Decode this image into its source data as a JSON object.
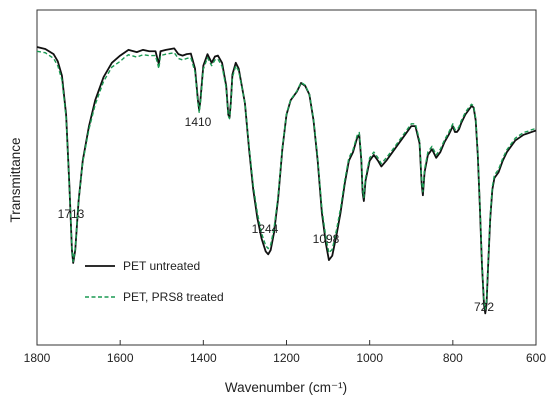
{
  "chart_data": {
    "type": "line",
    "title": "",
    "xlabel": "Wavenumber (cm⁻¹)",
    "ylabel": "Transmittance",
    "xlim": [
      1800,
      600
    ],
    "x_reversed": true,
    "x_ticks": [
      1800,
      1600,
      1400,
      1200,
      1000,
      800,
      600
    ],
    "y_ticks_shown": false,
    "grid": false,
    "legend_position": "bottom-left",
    "series": [
      {
        "name": "PET untreated",
        "color": "#111111",
        "dash": "solid",
        "points": [
          [
            1800,
            0.955
          ],
          [
            1780,
            0.948
          ],
          [
            1760,
            0.93
          ],
          [
            1750,
            0.905
          ],
          [
            1740,
            0.855
          ],
          [
            1730,
            0.72
          ],
          [
            1722,
            0.47
          ],
          [
            1716,
            0.25
          ],
          [
            1713,
            0.205
          ],
          [
            1708,
            0.25
          ],
          [
            1700,
            0.42
          ],
          [
            1690,
            0.56
          ],
          [
            1675,
            0.68
          ],
          [
            1660,
            0.77
          ],
          [
            1640,
            0.85
          ],
          [
            1620,
            0.9
          ],
          [
            1600,
            0.925
          ],
          [
            1590,
            0.935
          ],
          [
            1580,
            0.945
          ],
          [
            1560,
            0.937
          ],
          [
            1545,
            0.945
          ],
          [
            1530,
            0.94
          ],
          [
            1515,
            0.94
          ],
          [
            1507,
            0.895
          ],
          [
            1503,
            0.94
          ],
          [
            1490,
            0.945
          ],
          [
            1470,
            0.95
          ],
          [
            1460,
            0.93
          ],
          [
            1450,
            0.925
          ],
          [
            1440,
            0.93
          ],
          [
            1430,
            0.932
          ],
          [
            1420,
            0.88
          ],
          [
            1413,
            0.77
          ],
          [
            1410,
            0.735
          ],
          [
            1407,
            0.77
          ],
          [
            1400,
            0.89
          ],
          [
            1390,
            0.93
          ],
          [
            1380,
            0.9
          ],
          [
            1372,
            0.922
          ],
          [
            1365,
            0.925
          ],
          [
            1355,
            0.9
          ],
          [
            1345,
            0.82
          ],
          [
            1340,
            0.72
          ],
          [
            1337,
            0.71
          ],
          [
            1334,
            0.76
          ],
          [
            1330,
            0.86
          ],
          [
            1322,
            0.9
          ],
          [
            1315,
            0.88
          ],
          [
            1300,
            0.76
          ],
          [
            1290,
            0.6
          ],
          [
            1280,
            0.46
          ],
          [
            1270,
            0.36
          ],
          [
            1260,
            0.29
          ],
          [
            1250,
            0.245
          ],
          [
            1244,
            0.235
          ],
          [
            1238,
            0.25
          ],
          [
            1230,
            0.31
          ],
          [
            1220,
            0.43
          ],
          [
            1210,
            0.6
          ],
          [
            1200,
            0.72
          ],
          [
            1190,
            0.77
          ],
          [
            1180,
            0.79
          ],
          [
            1175,
            0.8
          ],
          [
            1165,
            0.83
          ],
          [
            1155,
            0.82
          ],
          [
            1145,
            0.79
          ],
          [
            1135,
            0.7
          ],
          [
            1125,
            0.56
          ],
          [
            1115,
            0.38
          ],
          [
            1105,
            0.27
          ],
          [
            1098,
            0.215
          ],
          [
            1090,
            0.23
          ],
          [
            1080,
            0.3
          ],
          [
            1070,
            0.38
          ],
          [
            1060,
            0.48
          ],
          [
            1050,
            0.56
          ],
          [
            1040,
            0.59
          ],
          [
            1030,
            0.64
          ],
          [
            1025,
            0.65
          ],
          [
            1020,
            0.56
          ],
          [
            1017,
            0.45
          ],
          [
            1014,
            0.42
          ],
          [
            1010,
            0.49
          ],
          [
            1000,
            0.56
          ],
          [
            990,
            0.58
          ],
          [
            980,
            0.56
          ],
          [
            972,
            0.54
          ],
          [
            960,
            0.56
          ],
          [
            945,
            0.59
          ],
          [
            930,
            0.62
          ],
          [
            915,
            0.65
          ],
          [
            900,
            0.68
          ],
          [
            890,
            0.68
          ],
          [
            880,
            0.62
          ],
          [
            875,
            0.48
          ],
          [
            872,
            0.44
          ],
          [
            868,
            0.52
          ],
          [
            860,
            0.58
          ],
          [
            850,
            0.6
          ],
          [
            840,
            0.57
          ],
          [
            830,
            0.59
          ],
          [
            820,
            0.625
          ],
          [
            810,
            0.65
          ],
          [
            800,
            0.68
          ],
          [
            795,
            0.66
          ],
          [
            790,
            0.66
          ],
          [
            785,
            0.67
          ],
          [
            780,
            0.69
          ],
          [
            770,
            0.72
          ],
          [
            760,
            0.74
          ],
          [
            755,
            0.75
          ],
          [
            750,
            0.745
          ],
          [
            745,
            0.7
          ],
          [
            740,
            0.58
          ],
          [
            735,
            0.4
          ],
          [
            730,
            0.2
          ],
          [
            725,
            0.06
          ],
          [
            722,
            0.03
          ],
          [
            719,
            0.06
          ],
          [
            715,
            0.2
          ],
          [
            710,
            0.36
          ],
          [
            705,
            0.46
          ],
          [
            700,
            0.5
          ],
          [
            690,
            0.52
          ],
          [
            680,
            0.56
          ],
          [
            670,
            0.59
          ],
          [
            660,
            0.61
          ],
          [
            650,
            0.63
          ],
          [
            640,
            0.64
          ],
          [
            630,
            0.65
          ],
          [
            620,
            0.655
          ],
          [
            610,
            0.66
          ],
          [
            600,
            0.665
          ]
        ]
      },
      {
        "name": "PET, PRS8 treated",
        "color": "#1a9a52",
        "dash": "dashed",
        "points": [
          [
            1800,
            0.94
          ],
          [
            1780,
            0.935
          ],
          [
            1760,
            0.915
          ],
          [
            1750,
            0.89
          ],
          [
            1740,
            0.84
          ],
          [
            1730,
            0.71
          ],
          [
            1722,
            0.465
          ],
          [
            1716,
            0.255
          ],
          [
            1713,
            0.21
          ],
          [
            1708,
            0.255
          ],
          [
            1700,
            0.42
          ],
          [
            1690,
            0.555
          ],
          [
            1675,
            0.67
          ],
          [
            1660,
            0.755
          ],
          [
            1640,
            0.835
          ],
          [
            1620,
            0.885
          ],
          [
            1600,
            0.905
          ],
          [
            1590,
            0.918
          ],
          [
            1580,
            0.928
          ],
          [
            1560,
            0.92
          ],
          [
            1545,
            0.928
          ],
          [
            1530,
            0.925
          ],
          [
            1515,
            0.925
          ],
          [
            1507,
            0.88
          ],
          [
            1503,
            0.925
          ],
          [
            1490,
            0.93
          ],
          [
            1470,
            0.935
          ],
          [
            1460,
            0.915
          ],
          [
            1450,
            0.91
          ],
          [
            1440,
            0.915
          ],
          [
            1430,
            0.918
          ],
          [
            1420,
            0.868
          ],
          [
            1413,
            0.762
          ],
          [
            1410,
            0.728
          ],
          [
            1407,
            0.762
          ],
          [
            1400,
            0.878
          ],
          [
            1390,
            0.918
          ],
          [
            1380,
            0.89
          ],
          [
            1372,
            0.91
          ],
          [
            1365,
            0.913
          ],
          [
            1355,
            0.888
          ],
          [
            1345,
            0.812
          ],
          [
            1340,
            0.715
          ],
          [
            1337,
            0.706
          ],
          [
            1334,
            0.752
          ],
          [
            1330,
            0.85
          ],
          [
            1322,
            0.89
          ],
          [
            1315,
            0.872
          ],
          [
            1300,
            0.76
          ],
          [
            1290,
            0.61
          ],
          [
            1280,
            0.475
          ],
          [
            1270,
            0.378
          ],
          [
            1260,
            0.308
          ],
          [
            1250,
            0.265
          ],
          [
            1244,
            0.255
          ],
          [
            1238,
            0.268
          ],
          [
            1230,
            0.325
          ],
          [
            1220,
            0.44
          ],
          [
            1210,
            0.605
          ],
          [
            1200,
            0.722
          ],
          [
            1190,
            0.772
          ],
          [
            1180,
            0.792
          ],
          [
            1175,
            0.802
          ],
          [
            1165,
            0.832
          ],
          [
            1155,
            0.822
          ],
          [
            1145,
            0.792
          ],
          [
            1135,
            0.705
          ],
          [
            1125,
            0.57
          ],
          [
            1115,
            0.395
          ],
          [
            1105,
            0.29
          ],
          [
            1098,
            0.24
          ],
          [
            1090,
            0.252
          ],
          [
            1080,
            0.318
          ],
          [
            1070,
            0.395
          ],
          [
            1060,
            0.492
          ],
          [
            1050,
            0.57
          ],
          [
            1040,
            0.598
          ],
          [
            1030,
            0.648
          ],
          [
            1025,
            0.658
          ],
          [
            1020,
            0.572
          ],
          [
            1017,
            0.462
          ],
          [
            1014,
            0.432
          ],
          [
            1010,
            0.5
          ],
          [
            1000,
            0.57
          ],
          [
            990,
            0.59
          ],
          [
            980,
            0.57
          ],
          [
            972,
            0.55
          ],
          [
            960,
            0.57
          ],
          [
            945,
            0.598
          ],
          [
            930,
            0.628
          ],
          [
            915,
            0.658
          ],
          [
            900,
            0.688
          ],
          [
            890,
            0.688
          ],
          [
            880,
            0.63
          ],
          [
            875,
            0.492
          ],
          [
            872,
            0.452
          ],
          [
            868,
            0.53
          ],
          [
            860,
            0.59
          ],
          [
            850,
            0.61
          ],
          [
            840,
            0.58
          ],
          [
            830,
            0.6
          ],
          [
            820,
            0.632
          ],
          [
            810,
            0.658
          ],
          [
            800,
            0.688
          ],
          [
            795,
            0.668
          ],
          [
            790,
            0.668
          ],
          [
            785,
            0.678
          ],
          [
            780,
            0.698
          ],
          [
            770,
            0.728
          ],
          [
            760,
            0.748
          ],
          [
            755,
            0.756
          ],
          [
            750,
            0.75
          ],
          [
            745,
            0.708
          ],
          [
            740,
            0.59
          ],
          [
            735,
            0.41
          ],
          [
            730,
            0.21
          ],
          [
            725,
            0.072
          ],
          [
            722,
            0.045
          ],
          [
            719,
            0.072
          ],
          [
            715,
            0.21
          ],
          [
            710,
            0.37
          ],
          [
            705,
            0.47
          ],
          [
            700,
            0.51
          ],
          [
            690,
            0.53
          ],
          [
            680,
            0.568
          ],
          [
            670,
            0.598
          ],
          [
            660,
            0.618
          ],
          [
            650,
            0.638
          ],
          [
            640,
            0.648
          ],
          [
            630,
            0.658
          ],
          [
            620,
            0.662
          ],
          [
            610,
            0.668
          ],
          [
            600,
            0.672
          ]
        ]
      }
    ],
    "annotations": [
      {
        "text": "1713",
        "x": 1713
      },
      {
        "text": "1410",
        "x": 1410
      },
      {
        "text": "1244",
        "x": 1244
      },
      {
        "text": "1098",
        "x": 1098
      },
      {
        "text": "722",
        "x": 722
      }
    ]
  }
}
